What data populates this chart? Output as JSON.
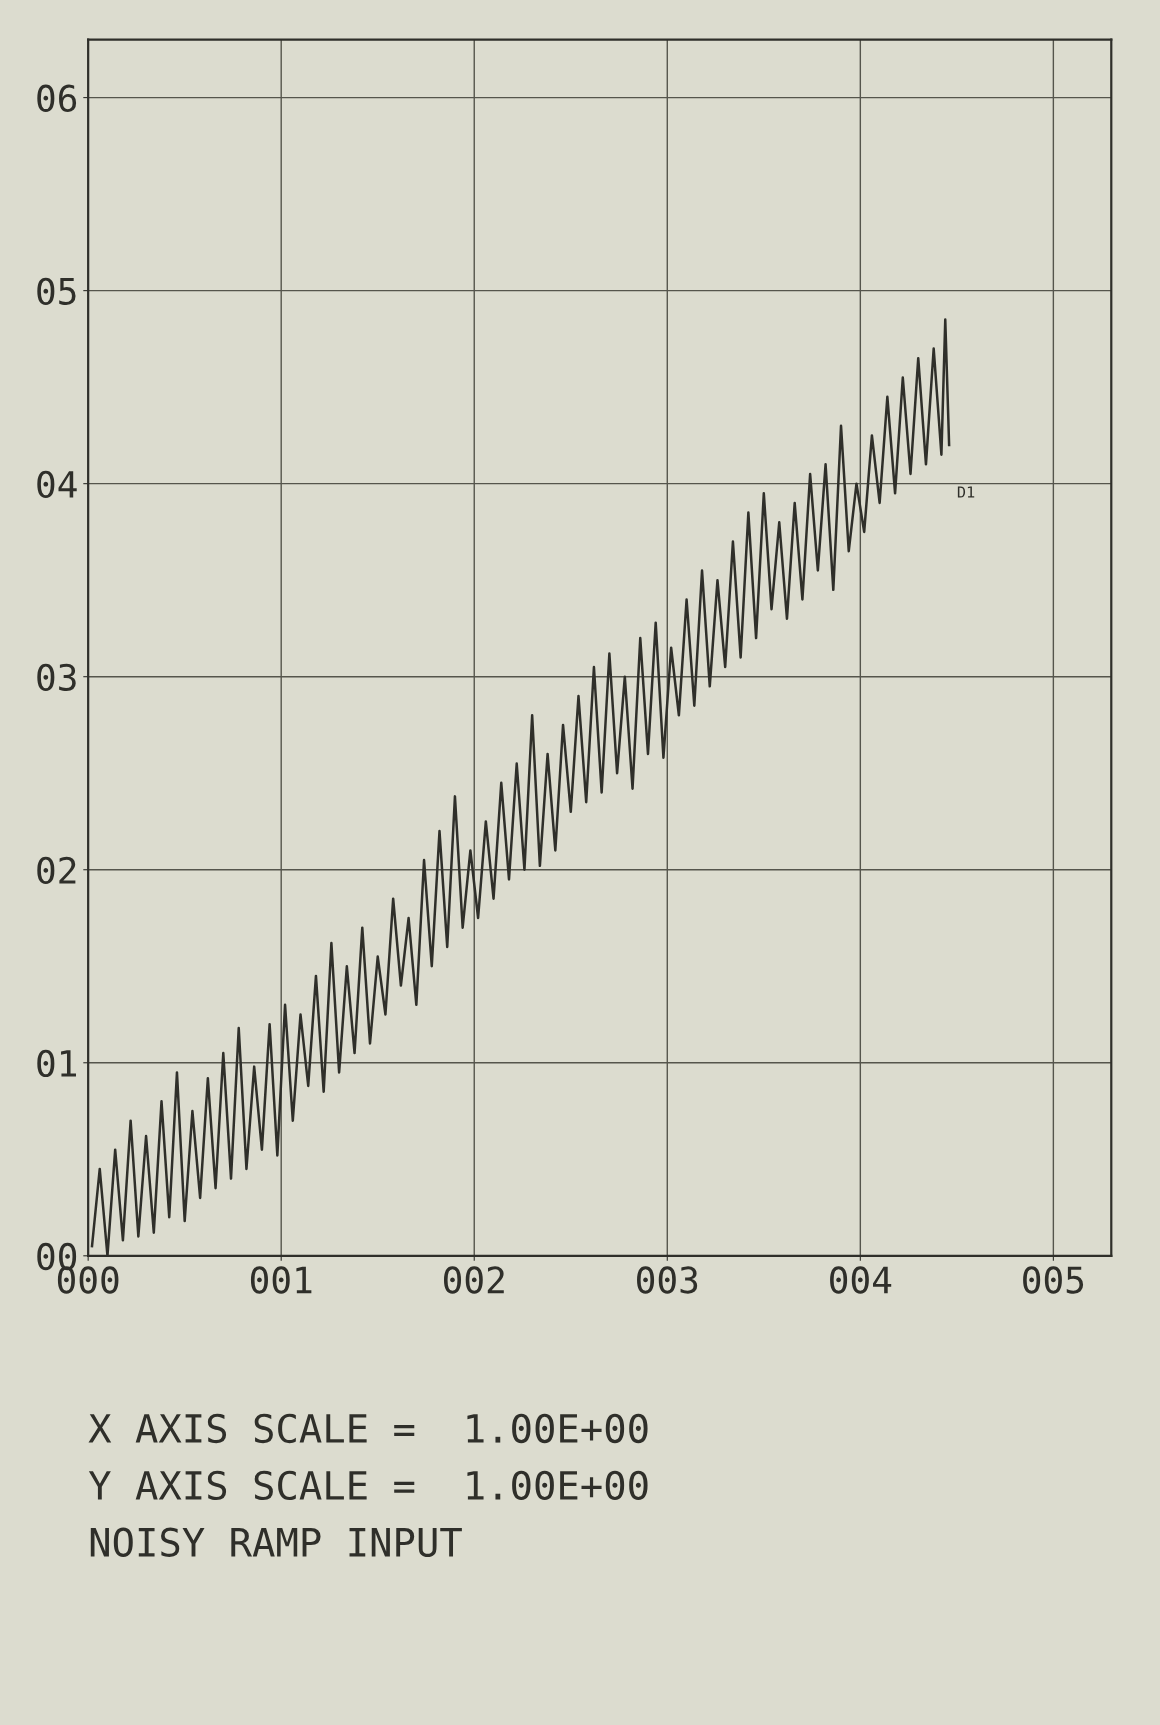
{
  "chart_data": {
    "type": "line",
    "x": [
      0.02,
      0.06,
      0.1,
      0.14,
      0.18,
      0.22,
      0.26,
      0.3,
      0.34,
      0.38,
      0.42,
      0.46,
      0.5,
      0.54,
      0.58,
      0.62,
      0.66,
      0.7,
      0.74,
      0.78,
      0.82,
      0.86,
      0.9,
      0.94,
      0.98,
      1.02,
      1.06,
      1.1,
      1.14,
      1.18,
      1.22,
      1.26,
      1.3,
      1.34,
      1.38,
      1.42,
      1.46,
      1.5,
      1.54,
      1.58,
      1.62,
      1.66,
      1.7,
      1.74,
      1.78,
      1.82,
      1.86,
      1.9,
      1.94,
      1.98,
      2.02,
      2.06,
      2.1,
      2.14,
      2.18,
      2.22,
      2.26,
      2.3,
      2.34,
      2.38,
      2.42,
      2.46,
      2.5,
      2.54,
      2.58,
      2.62,
      2.66,
      2.7,
      2.74,
      2.78,
      2.82,
      2.86,
      2.9,
      2.94,
      2.98,
      3.02,
      3.06,
      3.1,
      3.14,
      3.18,
      3.22,
      3.26,
      3.3,
      3.34,
      3.38,
      3.42,
      3.46,
      3.5,
      3.54,
      3.58,
      3.62,
      3.66,
      3.7,
      3.74,
      3.78,
      3.82,
      3.86,
      3.9,
      3.94,
      3.98,
      4.02,
      4.06,
      4.1,
      4.14,
      4.18,
      4.22,
      4.26,
      4.3,
      4.34,
      4.38,
      4.42,
      4.44,
      4.46
    ],
    "series": [
      {
        "name": "D1",
        "color": "#2f2f2a",
        "values": [
          0.05,
          0.45,
          0.0,
          0.55,
          0.08,
          0.7,
          0.1,
          0.62,
          0.12,
          0.8,
          0.2,
          0.95,
          0.18,
          0.75,
          0.3,
          0.92,
          0.35,
          1.05,
          0.4,
          1.18,
          0.45,
          0.98,
          0.55,
          1.2,
          0.52,
          1.3,
          0.7,
          1.25,
          0.88,
          1.45,
          0.85,
          1.62,
          0.95,
          1.5,
          1.05,
          1.7,
          1.1,
          1.55,
          1.25,
          1.85,
          1.4,
          1.75,
          1.3,
          2.05,
          1.5,
          2.2,
          1.6,
          2.38,
          1.7,
          2.1,
          1.75,
          2.25,
          1.85,
          2.45,
          1.95,
          2.55,
          2.0,
          2.8,
          2.02,
          2.6,
          2.1,
          2.75,
          2.3,
          2.9,
          2.35,
          3.05,
          2.4,
          3.12,
          2.5,
          3.0,
          2.42,
          3.2,
          2.6,
          3.28,
          2.58,
          3.15,
          2.8,
          3.4,
          2.85,
          3.55,
          2.95,
          3.5,
          3.05,
          3.7,
          3.1,
          3.85,
          3.2,
          3.95,
          3.35,
          3.8,
          3.3,
          3.9,
          3.4,
          4.05,
          3.55,
          4.1,
          3.45,
          4.3,
          3.65,
          4.0,
          3.75,
          4.25,
          3.9,
          4.45,
          3.95,
          4.55,
          4.05,
          4.65,
          4.1,
          4.7,
          4.15,
          4.85,
          4.2
        ]
      }
    ],
    "xlim": [
      0,
      5.3
    ],
    "ylim": [
      0,
      6.3
    ],
    "xticks": [
      {
        "value": 0,
        "label": "000"
      },
      {
        "value": 1,
        "label": "001"
      },
      {
        "value": 2,
        "label": "002"
      },
      {
        "value": 3,
        "label": "003"
      },
      {
        "value": 4,
        "label": "004"
      },
      {
        "value": 5,
        "label": "005"
      }
    ],
    "yticks": [
      {
        "value": 0,
        "label": "00"
      },
      {
        "value": 1,
        "label": "01"
      },
      {
        "value": 2,
        "label": "02"
      },
      {
        "value": 3,
        "label": "03"
      },
      {
        "value": 4,
        "label": "04"
      },
      {
        "value": 5,
        "label": "05"
      },
      {
        "value": 6,
        "label": "06"
      }
    ],
    "grid": true,
    "legend": false,
    "marker": "none",
    "line_style": "solid",
    "annotations": [
      "X AXIS SCALE =  1.00E+00",
      "Y AXIS SCALE =  1.00E+00",
      "NOISY RAMP INPUT"
    ]
  }
}
